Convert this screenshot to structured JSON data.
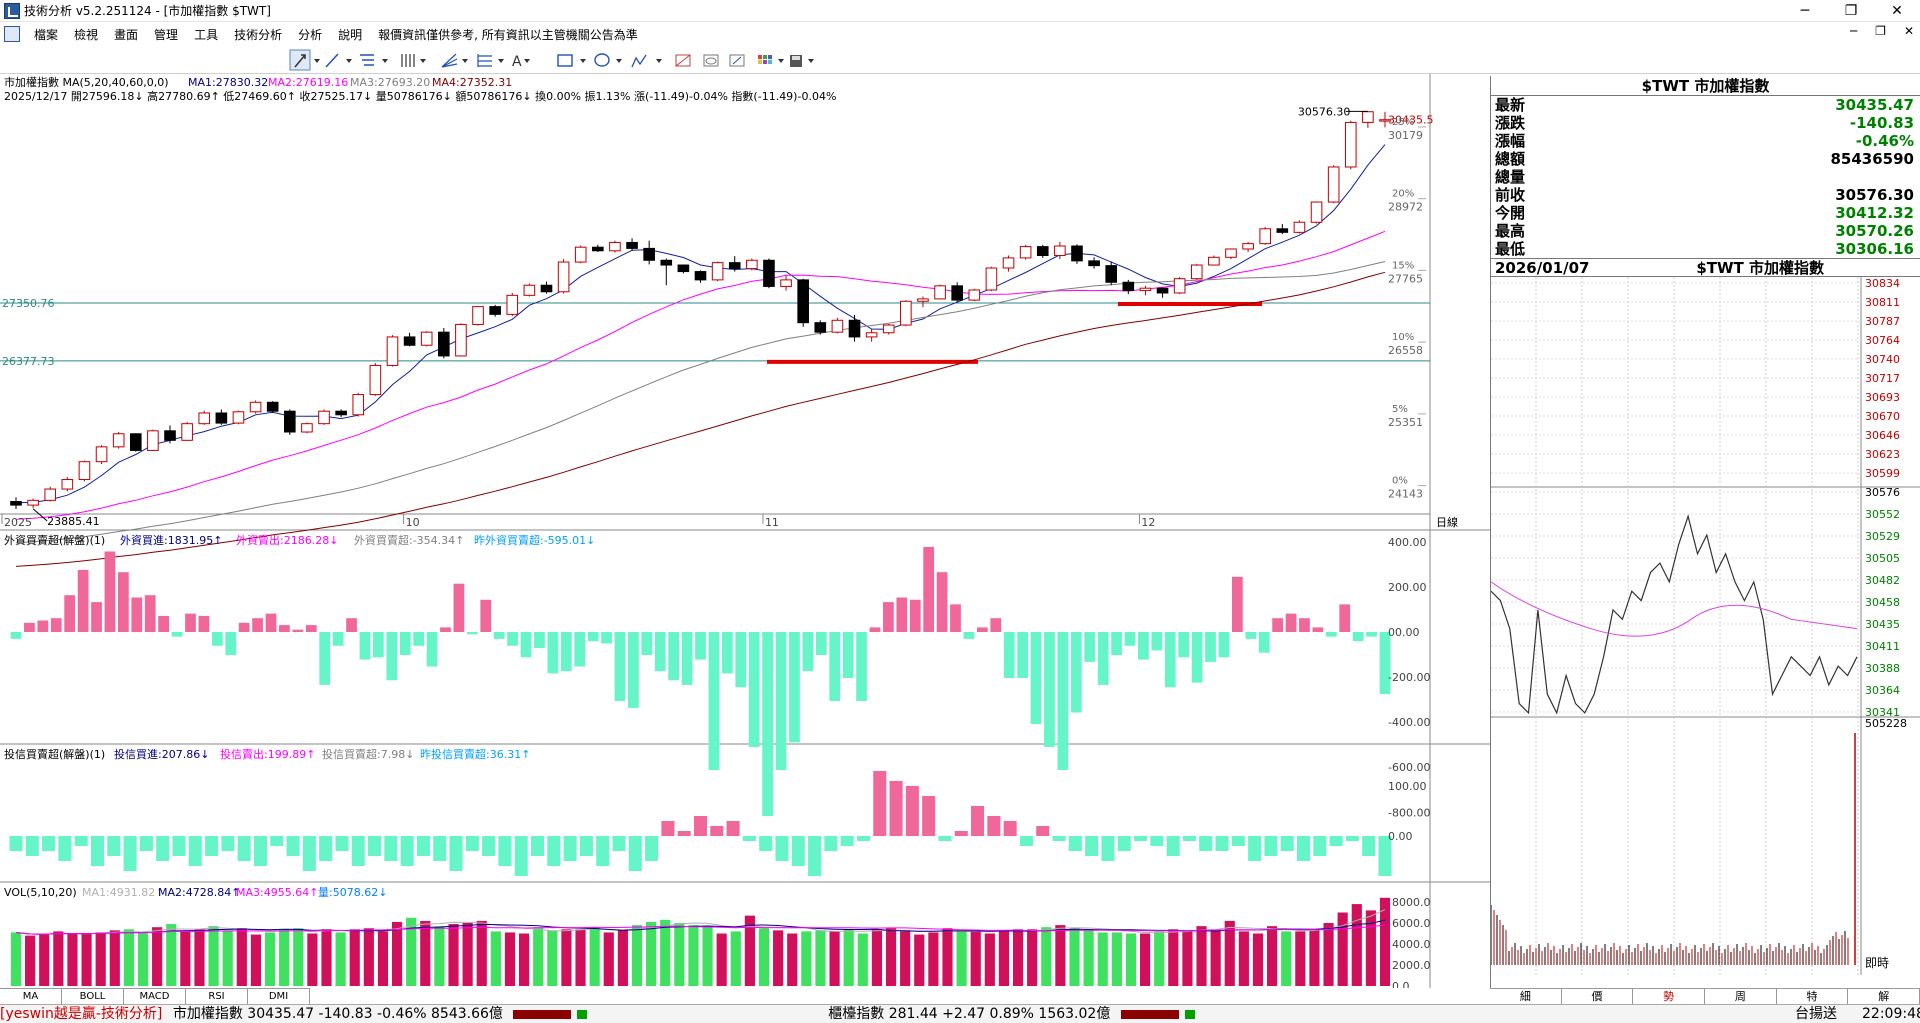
{
  "window": {
    "title": "技術分析 v5.2.251124 - [市加權指數 $TWT]",
    "controls": [
      "─",
      "❐",
      "✕"
    ]
  },
  "menu": {
    "items": [
      "檔案",
      "檢視",
      "畫面",
      "管理",
      "工具",
      "技術分析",
      "分析",
      "說明",
      "報價資訊僅供參考, 所有資訊以主管機關公告為準"
    ],
    "mdi_controls": [
      "─",
      "❐",
      "✕"
    ]
  },
  "toolbar": {
    "icons": [
      "cursor-icon",
      "line-tool-icon",
      "horizontal-line-icon",
      "vertical-lines-icon",
      "fan-icon",
      "fibonacci-icon",
      "text-tool-icon",
      "rectangle-icon",
      "ellipse-icon",
      "polyline-icon",
      "eraser-icon",
      "copy-icon",
      "compare-icon",
      "palette-icon",
      "save-icon"
    ]
  },
  "main_chart": {
    "name": "市加權指數",
    "ma_params": "MA(5,20,40,60,0,0)",
    "ma_values": [
      {
        "label": "MA1:27830.32",
        "color": "#000080"
      },
      {
        "label": "MA2:27619.16",
        "color": "#ff00ff"
      },
      {
        "label": "MA3:27693.20",
        "color": "#808080"
      },
      {
        "label": "MA4:27352.31",
        "color": "#800000"
      }
    ],
    "ohlc_line": "2025/12/17 開27596.18↓ 高27780.69↑ 低27469.60↑ 收27525.17↓ 量50786176↓ 額50786176↓ 換0.00% 振1.13% 漲(-11.49)-0.04% 指數(-11.49)-0.04%",
    "high_label": "30576.30",
    "low_label": "23885.41",
    "support1_label": "27350.76",
    "support2_label": "26377.73",
    "last_price_label": "30435.5",
    "y_ticks": [
      {
        "price": "30179",
        "pct": "25%"
      },
      {
        "price": "28972",
        "pct": "20%"
      },
      {
        "price": "27765",
        "pct": "15%"
      },
      {
        "price": "26558",
        "pct": "10%"
      },
      {
        "price": "25351",
        "pct": "5%"
      },
      {
        "price": "24143",
        "pct": "0%"
      }
    ],
    "x_labels": [
      "2025",
      "10",
      "11",
      "12",
      "2026"
    ],
    "period": "日線"
  },
  "foreign_panel": {
    "title": "外資買賣超(解盤)(1)",
    "items": [
      {
        "label": "外資買進:1831.95↑",
        "color": "#000080"
      },
      {
        "label": "外資賣出:2186.28↓",
        "color": "#ff00ff"
      },
      {
        "label": "外資買賣超:-354.34↑",
        "color": "#808080"
      },
      {
        "label": "昨外資買賣超:-595.01↓",
        "color": "#00a0ff"
      }
    ],
    "y_ticks": [
      "400.00",
      "200.00",
      "00.00",
      "-200.00",
      "-400.00",
      "-600.00",
      "-800.00"
    ]
  },
  "trust_panel": {
    "title": "投信買賣超(解盤)(1)",
    "items": [
      {
        "label": "投信買進:207.86↓",
        "color": "#000080"
      },
      {
        "label": "投信賣出:199.89↑",
        "color": "#ff00ff"
      },
      {
        "label": "投信買賣超:7.98↓",
        "color": "#808080"
      },
      {
        "label": "昨投信買賣超:36.31↑",
        "color": "#00a0ff"
      }
    ],
    "y_ticks": [
      "100.00",
      "0.00"
    ]
  },
  "volume_panel": {
    "title": "VOL(5,10,20)",
    "items": [
      {
        "label": "MA1:4931.82↑",
        "color": "#b0b0b0"
      },
      {
        "label": "MA2:4728.84↑",
        "color": "#000080"
      },
      {
        "label": "MA3:4955.64↑",
        "color": "#ff00ff"
      },
      {
        "label": "量:5078.62↓",
        "color": "#0080ff"
      }
    ],
    "y_ticks": [
      "8000.0",
      "6000.0",
      "4000.0",
      "2000.0",
      "0.0"
    ]
  },
  "quote": {
    "symbol_title": "$TWT 市加權指數",
    "rows": [
      {
        "label": "最新",
        "value": "30435.47",
        "color": "#008000"
      },
      {
        "label": "漲跌",
        "value": "-140.83",
        "color": "#008000"
      },
      {
        "label": "漲幅",
        "value": "-0.46%",
        "color": "#008000"
      },
      {
        "label": "總額",
        "value": "85436590",
        "color": "#000000"
      },
      {
        "label": "總量",
        "value": "",
        "color": "#000000"
      },
      {
        "label": "前收",
        "value": "30576.30",
        "color": "#000000"
      },
      {
        "label": "今開",
        "value": "30412.32",
        "color": "#008000"
      },
      {
        "label": "最高",
        "value": "30570.26",
        "color": "#008000"
      },
      {
        "label": "最低",
        "value": "30306.16",
        "color": "#008000"
      }
    ],
    "intraday_date": "2026/01/07",
    "intraday_title": "$TWT 市加權指數",
    "intraday_y_upper": [
      "30834",
      "30811",
      "30787",
      "30764",
      "30740",
      "30717",
      "30693",
      "30670",
      "30646",
      "30623",
      "30599"
    ],
    "intraday_y_lower": [
      "30576",
      "30552",
      "30529",
      "30505",
      "30482",
      "30458",
      "30435",
      "30411",
      "30388",
      "30364",
      "30341"
    ],
    "intraday_vol_max": "505228",
    "realtime_label": "即時"
  },
  "indicator_tabs": [
    "MA",
    "BOLL",
    "MACD",
    "RSI",
    "DMI"
  ],
  "period_tabs": [
    "細",
    "價",
    "勢",
    "周",
    "特",
    "解"
  ],
  "status": {
    "brand": "[yeswin越是贏-技術分析]",
    "taiex": "市加權指數 30435.47 -140.83 -0.46% 8543.66億",
    "otc": "櫃檯指數 281.44 +2.47 0.89% 1563.02億",
    "conn": "台揚送",
    "time": "22:09:48"
  },
  "chart_data": {
    "type": "candlestick",
    "note_units": "index points; bars in 億 (foreign/trust net buy) and 億 (volume)",
    "candles": [
      [
        24010,
        24080,
        23885,
        23950
      ],
      [
        23950,
        24060,
        23900,
        24030
      ],
      [
        24030,
        24260,
        24010,
        24220
      ],
      [
        24220,
        24420,
        24180,
        24380
      ],
      [
        24380,
        24700,
        24350,
        24680
      ],
      [
        24680,
        24960,
        24640,
        24930
      ],
      [
        24930,
        25180,
        24900,
        25150
      ],
      [
        25150,
        25160,
        24850,
        24870
      ],
      [
        24870,
        25220,
        24860,
        25200
      ],
      [
        25200,
        25290,
        24990,
        25040
      ],
      [
        25040,
        25350,
        25030,
        25320
      ],
      [
        25320,
        25540,
        25300,
        25500
      ],
      [
        25500,
        25560,
        25300,
        25330
      ],
      [
        25330,
        25540,
        25310,
        25520
      ],
      [
        25520,
        25710,
        25490,
        25680
      ],
      [
        25680,
        25700,
        25500,
        25530
      ],
      [
        25530,
        25560,
        25130,
        25180
      ],
      [
        25180,
        25340,
        25160,
        25320
      ],
      [
        25320,
        25560,
        25300,
        25530
      ],
      [
        25530,
        25560,
        25430,
        25470
      ],
      [
        25470,
        25840,
        25440,
        25810
      ],
      [
        25810,
        26340,
        25790,
        26300
      ],
      [
        26300,
        26810,
        26280,
        26780
      ],
      [
        26780,
        26850,
        26620,
        26640
      ],
      [
        26640,
        26880,
        26620,
        26860
      ],
      [
        26860,
        26930,
        26420,
        26460
      ],
      [
        26460,
        27010,
        26450,
        26990
      ],
      [
        26990,
        27300,
        26970,
        27290
      ],
      [
        27290,
        27320,
        27120,
        27160
      ],
      [
        27160,
        27520,
        27130,
        27480
      ],
      [
        27480,
        27680,
        27460,
        27650
      ],
      [
        27650,
        27710,
        27510,
        27540
      ],
      [
        27540,
        28090,
        27510,
        28040
      ],
      [
        28040,
        28320,
        28020,
        28290
      ],
      [
        28290,
        28330,
        28210,
        28230
      ],
      [
        28230,
        28400,
        28200,
        28370
      ],
      [
        28370,
        28440,
        28230,
        28270
      ],
      [
        28270,
        28400,
        28000,
        28070
      ],
      [
        28070,
        28100,
        27650,
        27990
      ],
      [
        27990,
        28000,
        27850,
        27880
      ],
      [
        27880,
        27900,
        27690,
        27740
      ],
      [
        27740,
        28050,
        27720,
        28030
      ],
      [
        28030,
        28140,
        27880,
        27930
      ],
      [
        27930,
        28100,
        27900,
        28070
      ],
      [
        28070,
        28100,
        27600,
        27630
      ],
      [
        27630,
        27810,
        27560,
        27740
      ],
      [
        27740,
        27760,
        26950,
        27020
      ],
      [
        27020,
        27060,
        26820,
        26860
      ],
      [
        26860,
        27100,
        26840,
        27060
      ],
      [
        27060,
        27150,
        26700,
        26780
      ],
      [
        26780,
        26910,
        26700,
        26850
      ],
      [
        26850,
        27000,
        26820,
        26980
      ],
      [
        26980,
        27400,
        26960,
        27380
      ],
      [
        27380,
        27460,
        27280,
        27420
      ],
      [
        27420,
        27660,
        27410,
        27640
      ],
      [
        27640,
        27700,
        27360,
        27400
      ],
      [
        27400,
        27590,
        27380,
        27570
      ],
      [
        27570,
        27960,
        27550,
        27940
      ],
      [
        27940,
        28150,
        27880,
        28110
      ],
      [
        28110,
        28330,
        28080,
        28300
      ],
      [
        28300,
        28330,
        28110,
        28150
      ],
      [
        28150,
        28380,
        28090,
        28310
      ],
      [
        28310,
        28340,
        28010,
        28060
      ],
      [
        28060,
        28120,
        27930,
        27980
      ],
      [
        27980,
        28050,
        27650,
        27700
      ],
      [
        27700,
        27740,
        27500,
        27560
      ],
      [
        27560,
        27640,
        27480,
        27600
      ],
      [
        27600,
        27610,
        27440,
        27520
      ],
      [
        27520,
        27790,
        27500,
        27760
      ],
      [
        27760,
        28010,
        27740,
        27990
      ],
      [
        27990,
        28150,
        27980,
        28120
      ],
      [
        28120,
        28270,
        28090,
        28260
      ],
      [
        28260,
        28380,
        28210,
        28350
      ],
      [
        28350,
        28630,
        28330,
        28600
      ],
      [
        28600,
        28680,
        28510,
        28540
      ],
      [
        28540,
        28740,
        28520,
        28710
      ],
      [
        28710,
        29060,
        28690,
        29050
      ],
      [
        29050,
        29670,
        29030,
        29640
      ],
      [
        29640,
        30420,
        29600,
        30390
      ],
      [
        30390,
        30576,
        30300,
        30570
      ],
      [
        30412,
        30570,
        30306,
        30435
      ]
    ],
    "foreign_net": [
      -30,
      40,
      50,
      60,
      160,
      270,
      130,
      350,
      260,
      150,
      160,
      70,
      -20,
      80,
      70,
      -60,
      -100,
      40,
      60,
      80,
      30,
      10,
      30,
      -230,
      -60,
      60,
      -120,
      -110,
      -210,
      -100,
      -60,
      -150,
      20,
      210,
      -10,
      140,
      -30,
      -60,
      -110,
      -70,
      -180,
      -170,
      -150,
      -40,
      -50,
      -300,
      -330,
      -100,
      -170,
      -210,
      -230,
      -120,
      -600,
      -180,
      -240,
      -500,
      -800,
      -600,
      -480,
      -170,
      -100,
      -300,
      -200,
      -300,
      20,
      130,
      150,
      140,
      370,
      260,
      120,
      -30,
      20,
      60,
      -200,
      -200,
      -400,
      -500,
      -600,
      -350,
      -130,
      -230,
      -100,
      -60,
      -120,
      -80,
      -240,
      -110,
      -220,
      -130,
      -110,
      240,
      -30,
      -90,
      60,
      80,
      60,
      20,
      -20,
      120,
      -40,
      -20,
      -270
    ],
    "trust_net": [
      -30,
      -40,
      -30,
      -50,
      -20,
      -60,
      -40,
      -70,
      -30,
      -50,
      -40,
      -60,
      -40,
      -30,
      -50,
      -60,
      -20,
      -40,
      -70,
      -50,
      -30,
      -60,
      -40,
      -50,
      -60,
      -40,
      -50,
      -70,
      -30,
      -40,
      -60,
      -80,
      -40,
      -60,
      -50,
      -40,
      -60,
      -30,
      -70,
      -50,
      30,
      10,
      40,
      20,
      30,
      -10,
      -30,
      -50,
      -60,
      -80,
      -30,
      -20,
      -10,
      130,
      110,
      100,
      80,
      -10,
      10,
      60,
      40,
      30,
      -20,
      20,
      -10,
      -30,
      -40,
      -50,
      -30,
      -10,
      -20,
      -40,
      -10,
      -30,
      -30,
      -20,
      -50,
      -40,
      -30,
      -50,
      -40,
      -20,
      -10,
      -40,
      -80
    ],
    "volume": [
      5100,
      4800,
      4900,
      5200,
      4950,
      5000,
      5100,
      5300,
      5400,
      5000,
      5600,
      5900,
      5200,
      5400,
      5700,
      5300,
      5500,
      4900,
      5100,
      5400,
      5500,
      5000,
      5400,
      5100,
      5400,
      5500,
      5200,
      6100,
      6500,
      6200,
      5700,
      5900,
      6000,
      6200,
      5200,
      5100,
      5000,
      5600,
      5300,
      5400,
      5400,
      5600,
      5100,
      5300,
      5800,
      6100,
      6300,
      6000,
      5800,
      5700,
      5000,
      5200,
      6700,
      5500,
      5300,
      5000,
      5200,
      5300,
      5200,
      5400,
      5000,
      5400,
      5500,
      5200,
      4900,
      5100,
      5500,
      5300,
      5200,
      5000,
      5300,
      5400,
      5400,
      5600,
      5800,
      5500,
      5300,
      5100,
      5100,
      5000,
      5000,
      5200,
      5400,
      5300,
      5700,
      5300,
      6200,
      5200,
      5000,
      5700,
      5200,
      5200,
      5300,
      6000,
      7000,
      7800,
      7200,
      8400
    ]
  }
}
